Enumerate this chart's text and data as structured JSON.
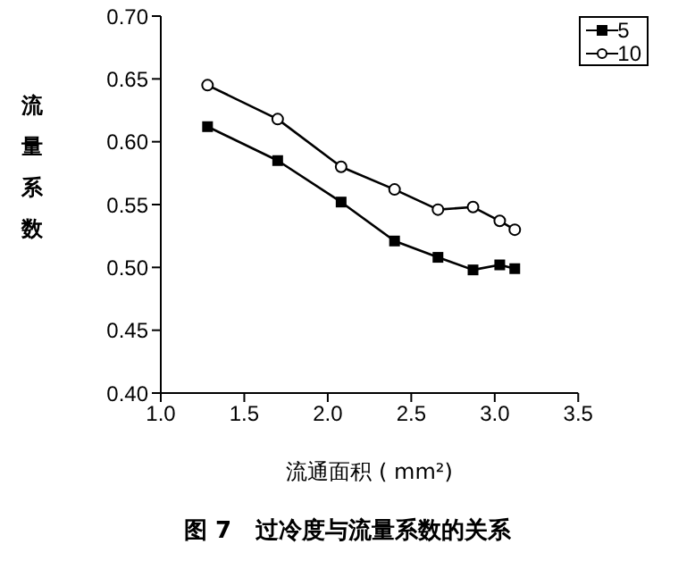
{
  "chart_data": {
    "type": "line",
    "title": "图 7   过冷度与流量系数的关系",
    "xlabel": "流通面积 ( mm²)",
    "ylabel": "流量系数",
    "x": [
      1.28,
      1.7,
      2.08,
      2.4,
      2.66,
      2.87,
      3.03,
      3.12
    ],
    "series": [
      {
        "name": "5",
        "color": "#000000",
        "marker": "square",
        "values": [
          0.612,
          0.585,
          0.552,
          0.521,
          0.508,
          0.498,
          0.502,
          0.499
        ]
      },
      {
        "name": "10",
        "color": "#000000",
        "marker": "circle",
        "values": [
          0.645,
          0.618,
          0.58,
          0.562,
          0.546,
          0.548,
          0.537,
          0.53
        ]
      }
    ],
    "xlim": [
      1.0,
      3.5
    ],
    "xticks": [
      {
        "value": 1.0,
        "label": "1.0"
      },
      {
        "value": 1.5,
        "label": "1.5"
      },
      {
        "value": 2.0,
        "label": "2.0"
      },
      {
        "value": 2.5,
        "label": "2.5"
      },
      {
        "value": 3.0,
        "label": "3.0"
      },
      {
        "value": 3.5,
        "label": "3.5"
      }
    ],
    "ylim": [
      0.4,
      0.7
    ],
    "yticks": [
      {
        "value": 0.4,
        "label": "0.40"
      },
      {
        "value": 0.45,
        "label": "0.45"
      },
      {
        "value": 0.5,
        "label": "0.50"
      },
      {
        "value": 0.55,
        "label": "0.55"
      },
      {
        "value": 0.6,
        "label": "0.60"
      },
      {
        "value": 0.65,
        "label": "0.65"
      },
      {
        "value": 0.7,
        "label": "0.70"
      }
    ],
    "grid": false,
    "legend": "top right",
    "line_style": "solid"
  }
}
